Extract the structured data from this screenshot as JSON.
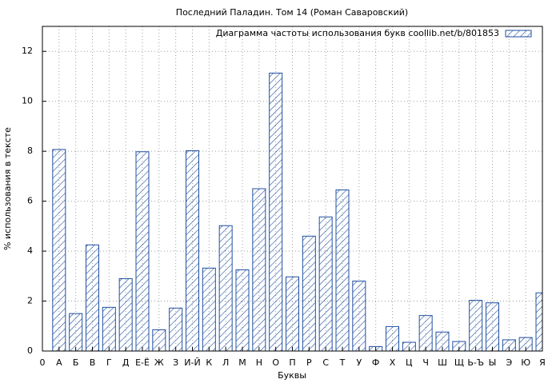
{
  "chart_data": {
    "type": "bar",
    "title": "Последний Паладин. Том 14 (Роман Саваровский)",
    "xlabel": "Буквы",
    "ylabel": "% использования в тексте",
    "categories": [
      "0",
      "А",
      "Б",
      "В",
      "Г",
      "Д",
      "Е-Ё",
      "Ж",
      "З",
      "И-Й",
      "К",
      "Л",
      "М",
      "Н",
      "О",
      "П",
      "Р",
      "С",
      "Т",
      "У",
      "Ф",
      "Х",
      "Ц",
      "Ч",
      "Ш",
      "Щ",
      "Ь-Ъ",
      "Ы",
      "Э",
      "Ю",
      "Я"
    ],
    "series": [
      {
        "name": "Диаграмма частоты использования букв coollib.net/b/801853",
        "color": "#1f4fa0",
        "values": [
          null,
          8.07,
          1.5,
          4.25,
          1.75,
          2.9,
          7.98,
          0.85,
          1.72,
          8.02,
          3.32,
          5.02,
          3.25,
          6.5,
          11.13,
          2.97,
          4.6,
          5.37,
          6.45,
          2.8,
          0.18,
          0.98,
          0.35,
          1.42,
          0.76,
          0.38,
          2.03,
          1.93,
          0.45,
          0.54,
          2.33
        ]
      }
    ],
    "ylim": [
      0,
      13
    ],
    "yticks": [
      0,
      2,
      4,
      6,
      8,
      10,
      12
    ],
    "grid": true,
    "legend": "top-right"
  }
}
